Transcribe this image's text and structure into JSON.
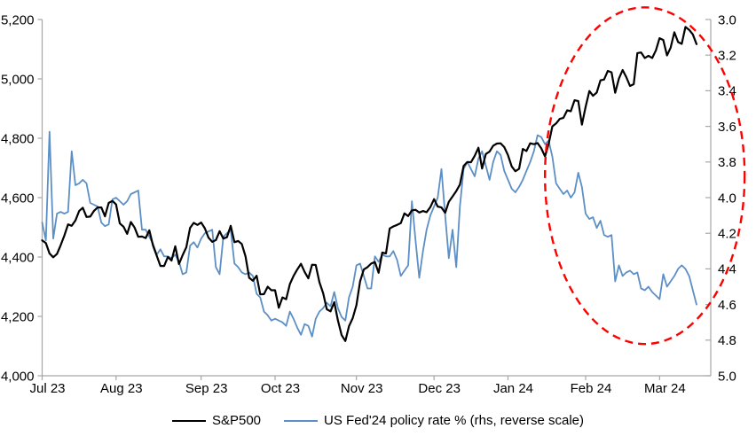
{
  "chart_data": {
    "type": "line",
    "title": "",
    "grid": false,
    "legend_position": "bottom",
    "x_axis": {
      "labels": [
        "Jul 23",
        "Aug 23",
        "Sep 23",
        "Oct 23",
        "Nov 23",
        "Dec 23",
        "Jan 24",
        "Feb 24",
        "Mar 24"
      ],
      "label_day_indices": [
        0,
        20,
        43,
        63,
        85,
        106,
        126,
        147,
        167
      ],
      "unit": "daily (trading days), Jul 2023 - mid Mar 2024"
    },
    "left_axis": {
      "min": 4000,
      "max": 5200,
      "step": 200,
      "tick_values": [
        4000,
        4200,
        4400,
        4600,
        4800,
        5000,
        5200
      ],
      "tick_labels": [
        "4,000",
        "4,200",
        "4,400",
        "4,600",
        "4,800",
        "5,000",
        "5,200"
      ]
    },
    "right_axis": {
      "min": 3.0,
      "max": 5.0,
      "step": 0.2,
      "reversed": true,
      "tick_values": [
        3.0,
        3.2,
        3.4,
        3.6,
        3.8,
        4.0,
        4.2,
        4.4,
        4.6,
        4.8,
        5.0
      ],
      "tick_labels": [
        "3.0",
        "3.2",
        "3.4",
        "3.6",
        "3.8",
        "4.0",
        "4.2",
        "4.4",
        "4.6",
        "4.8",
        "5.0"
      ]
    },
    "series": [
      {
        "name": "S&P500",
        "axis": "left",
        "color": "#000000",
        "width": 2.2,
        "values": [
          4456,
          4447,
          4412,
          4399,
          4410,
          4439,
          4472,
          4510,
          4505,
          4523,
          4555,
          4566,
          4535,
          4536,
          4555,
          4567,
          4567,
          4537,
          4582,
          4589,
          4577,
          4513,
          4502,
          4478,
          4518,
          4499,
          4468,
          4469,
          4464,
          4490,
          4438,
          4404,
          4370,
          4370,
          4400,
          4388,
          4436,
          4376,
          4406,
          4433,
          4498,
          4515,
          4508,
          4516,
          4497,
          4465,
          4451,
          4457,
          4487,
          4462,
          4467,
          4505,
          4450,
          4454,
          4444,
          4402,
          4330,
          4320,
          4337,
          4274,
          4275,
          4300,
          4288,
          4288,
          4229,
          4264,
          4258,
          4309,
          4336,
          4358,
          4377,
          4350,
          4328,
          4374,
          4373,
          4315,
          4278,
          4224,
          4217,
          4248,
          4187,
          4137,
          4117,
          4167,
          4194,
          4238,
          4318,
          4358,
          4366,
          4378,
          4383,
          4347,
          4415,
          4412,
          4496,
          4503,
          4508,
          4514,
          4547,
          4538,
          4557,
          4559,
          4550,
          4555,
          4551,
          4568,
          4595,
          4570,
          4567,
          4549,
          4586,
          4604,
          4622,
          4644,
          4707,
          4720,
          4719,
          4741,
          4768,
          4698,
          4747,
          4755,
          4775,
          4782,
          4783,
          4770,
          4743,
          4705,
          4689,
          4697,
          4764,
          4757,
          4783,
          4780,
          4784,
          4766,
          4739,
          4781,
          4840,
          4850,
          4865,
          4869,
          4894,
          4891,
          4928,
          4925,
          4846,
          4906,
          4959,
          4943,
          4954,
          4995,
          4998,
          5027,
          5022,
          4953,
          5001,
          5030,
          5006,
          4976,
          4982,
          5087,
          5089,
          5070,
          5078,
          5070,
          5096,
          5137,
          5131,
          5079,
          5105,
          5157,
          5124,
          5118,
          5175,
          5165,
          5150,
          5117
        ]
      },
      {
        "name": "US Fed'24 policy rate % (rhs, reverse scale)",
        "axis": "right",
        "color": "#5C8FC6",
        "width": 1.8,
        "values": [
          4.14,
          4.24,
          3.63,
          4.23,
          4.09,
          4.08,
          4.09,
          4.08,
          3.74,
          3.93,
          3.92,
          3.9,
          3.92,
          4.03,
          4.04,
          4.05,
          4.14,
          4.16,
          4.15,
          4.01,
          4.0,
          4.02,
          4.04,
          4.02,
          3.98,
          3.97,
          3.96,
          4.18,
          4.18,
          4.22,
          4.26,
          4.32,
          4.29,
          4.33,
          4.33,
          4.34,
          4.32,
          4.36,
          4.43,
          4.42,
          4.27,
          4.25,
          4.28,
          4.23,
          4.2,
          4.19,
          4.18,
          4.39,
          4.43,
          4.22,
          4.2,
          4.18,
          4.37,
          4.39,
          4.42,
          4.43,
          4.42,
          4.44,
          4.54,
          4.56,
          4.64,
          4.66,
          4.69,
          4.68,
          4.69,
          4.7,
          4.72,
          4.64,
          4.68,
          4.73,
          4.77,
          4.71,
          4.72,
          4.78,
          4.68,
          4.64,
          4.62,
          4.59,
          4.61,
          4.53,
          4.62,
          4.67,
          4.69,
          4.56,
          4.5,
          4.38,
          4.37,
          4.44,
          4.51,
          4.51,
          4.33,
          4.36,
          4.32,
          4.33,
          4.33,
          4.3,
          4.35,
          4.44,
          4.41,
          4.38,
          4.02,
          4.24,
          4.45,
          4.3,
          4.18,
          4.1,
          4.05,
          4.0,
          3.84,
          4.1,
          4.34,
          4.18,
          4.39,
          4.05,
          3.84,
          3.8,
          3.84,
          3.88,
          3.78,
          3.74,
          3.82,
          3.9,
          3.8,
          3.74,
          3.76,
          3.85,
          3.9,
          3.95,
          3.97,
          3.94,
          3.9,
          3.85,
          3.8,
          3.74,
          3.65,
          3.66,
          3.7,
          3.68,
          3.77,
          3.92,
          3.95,
          3.98,
          3.96,
          4.0,
          3.97,
          3.86,
          3.94,
          4.09,
          4.12,
          4.11,
          4.17,
          4.13,
          4.21,
          4.22,
          4.21,
          4.47,
          4.38,
          4.44,
          4.42,
          4.41,
          4.43,
          4.42,
          4.51,
          4.52,
          4.5,
          4.53,
          4.55,
          4.57,
          4.43,
          4.5,
          4.47,
          4.44,
          4.4,
          4.38,
          4.4,
          4.44,
          4.52,
          4.6
        ]
      }
    ],
    "annotation": {
      "shape": "ellipse",
      "style": "dashed",
      "color": "#FF0000",
      "stroke_width": 2.4,
      "cx_day": 163,
      "cy_left_value": 4674,
      "rx_days": 27,
      "ry_left_value_span": 567,
      "meaning": "highlights divergence between S&P500 and Fed rate expectations, Jan-Mar 24"
    }
  },
  "legend": {
    "sp500_label": "S&P500",
    "fed_label": "US Fed'24 policy rate % (rhs, reverse scale)"
  },
  "colors": {
    "sp500_line": "#000000",
    "fed_rate_line": "#5C8FC6",
    "annotation_red": "#FF0000",
    "axis_line": "#A6A6A6",
    "label_text": "#000000",
    "background": "#FFFFFF"
  }
}
